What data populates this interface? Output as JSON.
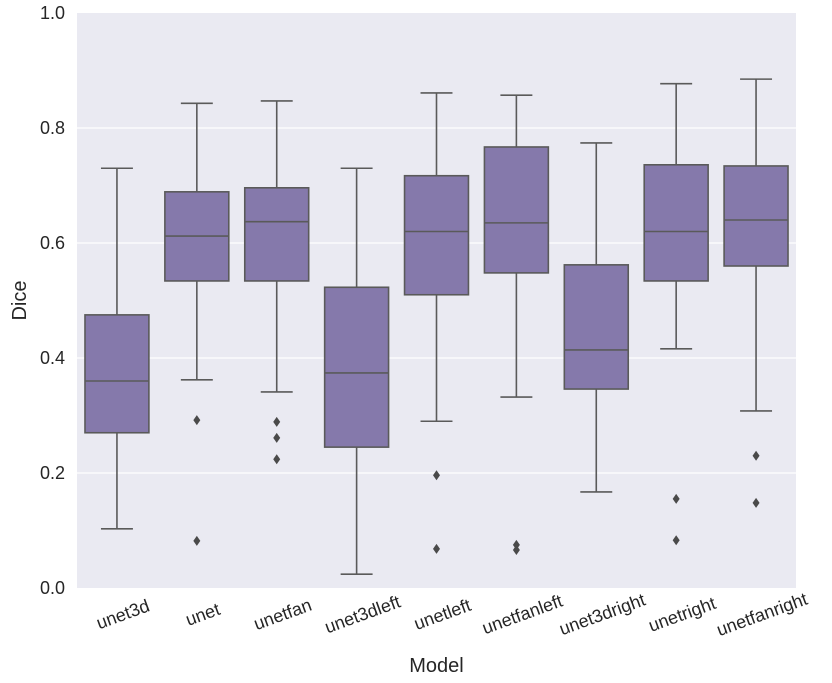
{
  "chart_data": {
    "type": "box",
    "title": "",
    "xlabel": "Model",
    "ylabel": "Dice",
    "ylim": [
      0.0,
      1.0
    ],
    "yticks": [
      "0.0",
      "0.2",
      "0.4",
      "0.6",
      "0.8",
      "1.0"
    ],
    "ytick_values": [
      0.0,
      0.2,
      0.4,
      0.6,
      0.8,
      1.0
    ],
    "grid": true,
    "colors": {
      "box_fill": "#8579ab",
      "box_edge": "#5a5a5a",
      "plot_bg": "#eaeaf2",
      "grid": "#ffffff",
      "text": "#262626"
    },
    "categories": [
      "unet3d",
      "unet",
      "unetfan",
      "unet3dleft",
      "unetleft",
      "unetfanleft",
      "unet3dright",
      "unetright",
      "unetfanright"
    ],
    "boxes": [
      {
        "name": "unet3d",
        "whisker_low": 0.103,
        "q1": 0.27,
        "median": 0.36,
        "q3": 0.475,
        "whisker_high": 0.73,
        "outliers": []
      },
      {
        "name": "unet",
        "whisker_low": 0.362,
        "q1": 0.534,
        "median": 0.612,
        "q3": 0.689,
        "whisker_high": 0.843,
        "outliers": [
          0.292,
          0.082
        ]
      },
      {
        "name": "unetfan",
        "whisker_low": 0.341,
        "q1": 0.534,
        "median": 0.637,
        "q3": 0.696,
        "whisker_high": 0.847,
        "outliers": [
          0.289,
          0.261,
          0.224
        ]
      },
      {
        "name": "unet3dleft",
        "whisker_low": 0.024,
        "q1": 0.245,
        "median": 0.374,
        "q3": 0.523,
        "whisker_high": 0.73,
        "outliers": []
      },
      {
        "name": "unetleft",
        "whisker_low": 0.29,
        "q1": 0.51,
        "median": 0.62,
        "q3": 0.717,
        "whisker_high": 0.861,
        "outliers": [
          0.196,
          0.068
        ]
      },
      {
        "name": "unetfanleft",
        "whisker_low": 0.332,
        "q1": 0.548,
        "median": 0.635,
        "q3": 0.767,
        "whisker_high": 0.857,
        "outliers": [
          0.075,
          0.066
        ]
      },
      {
        "name": "unet3dright",
        "whisker_low": 0.167,
        "q1": 0.346,
        "median": 0.414,
        "q3": 0.562,
        "whisker_high": 0.774,
        "outliers": []
      },
      {
        "name": "unetright",
        "whisker_low": 0.416,
        "q1": 0.534,
        "median": 0.62,
        "q3": 0.736,
        "whisker_high": 0.877,
        "outliers": [
          0.155,
          0.083
        ]
      },
      {
        "name": "unetfanright",
        "whisker_low": 0.308,
        "q1": 0.56,
        "median": 0.64,
        "q3": 0.734,
        "whisker_high": 0.885,
        "outliers": [
          0.23,
          0.148
        ]
      }
    ]
  }
}
